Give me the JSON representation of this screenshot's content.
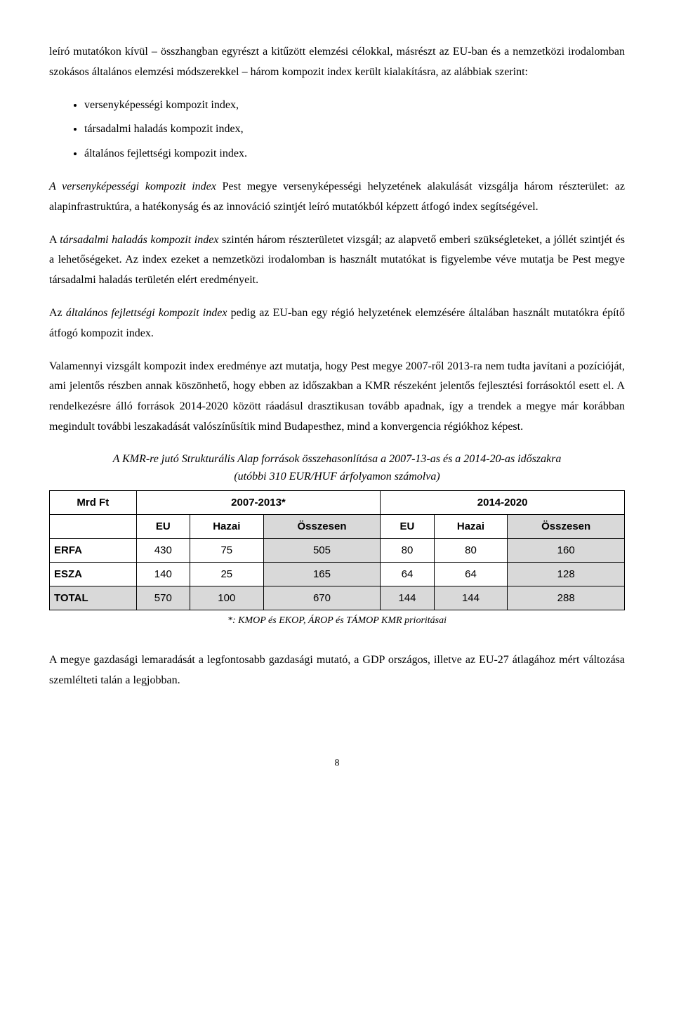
{
  "para1": "leíró mutatókon kívül – összhangban egyrészt a kitűzött elemzési célokkal, másrészt az EU-ban és a nemzetközi irodalomban szokásos általános elemzési módszerekkel – három kompozit index került kialakításra, az alábbiak szerint:",
  "bullets": [
    "versenyképességi kompozit index,",
    "társadalmi haladás kompozit index,",
    "általános fejlettségi kompozit index."
  ],
  "para2_lead_italic": "A versenyképességi kompozit index",
  "para2_rest": " Pest megye versenyképességi helyzetének alakulását vizsgálja három részterület: az alapinfrastruktúra, a hatékonyság és az innováció szintjét leíró mutatókból képzett átfogó index segítségével.",
  "para3_lead": "A ",
  "para3_italic": "társadalmi haladás kompozit index",
  "para3_rest": " szintén három részterületet vizsgál; az alapvető emberi szükségleteket, a jóllét szintjét és a lehetőségeket. Az index ezeket a nemzetközi irodalomban is használt mutatókat is figyelembe véve mutatja be Pest megye társadalmi haladás területén elért eredményeit.",
  "para4_lead": "Az ",
  "para4_italic": "általános fejlettségi kompozit index",
  "para4_rest": " pedig az EU-ban egy régió helyzetének elemzésére általában használt mutatókra építő átfogó kompozit index.",
  "para5": "Valamennyi vizsgált kompozit index eredménye azt mutatja, hogy Pest megye 2007-ről 2013-ra nem tudta javítani a pozícióját, ami jelentős részben annak köszönhető, hogy ebben az időszakban a KMR részeként jelentős fejlesztési forrásoktól esett el. A rendelkezésre álló források 2014-2020 között ráadásul drasztikusan tovább apadnak, így a trendek a megye már korábban megindult további leszakadását valószínűsítik mind Budapesthez, mind a konvergencia régiókhoz képest.",
  "caption_line1": "A KMR-re jutó Strukturális Alap források összehasonlítása a 2007-13-as és a 2014-20-as időszakra",
  "caption_line2": "(utóbbi 310 EUR/HUF árfolyamon számolva)",
  "table": {
    "header_row1": {
      "c0": "Mrd Ft",
      "c1": "2007-2013*",
      "c2": "2014-2020"
    },
    "header_row2": {
      "c1": "EU",
      "c2": "Hazai",
      "c3": "Összesen",
      "c4": "EU",
      "c5": "Hazai",
      "c6": "Összesen"
    },
    "rows": [
      {
        "label": "ERFA",
        "v1": "430",
        "v2": "75",
        "v3": "505",
        "v4": "80",
        "v5": "80",
        "v6": "160"
      },
      {
        "label": "ESZA",
        "v1": "140",
        "v2": "25",
        "v3": "165",
        "v4": "64",
        "v5": "64",
        "v6": "128"
      },
      {
        "label": "TOTAL",
        "v1": "570",
        "v2": "100",
        "v3": "670",
        "v4": "144",
        "v5": "144",
        "v6": "288"
      }
    ]
  },
  "footnote": "*: KMOP és EKOP, ÁROP és TÁMOP KMR prioritásai",
  "para6": "A megye gazdasági lemaradását a legfontosabb gazdasági mutató, a GDP országos, illetve az EU-27 átlagához mért változása szemlélteti talán a legjobban.",
  "page": "8"
}
